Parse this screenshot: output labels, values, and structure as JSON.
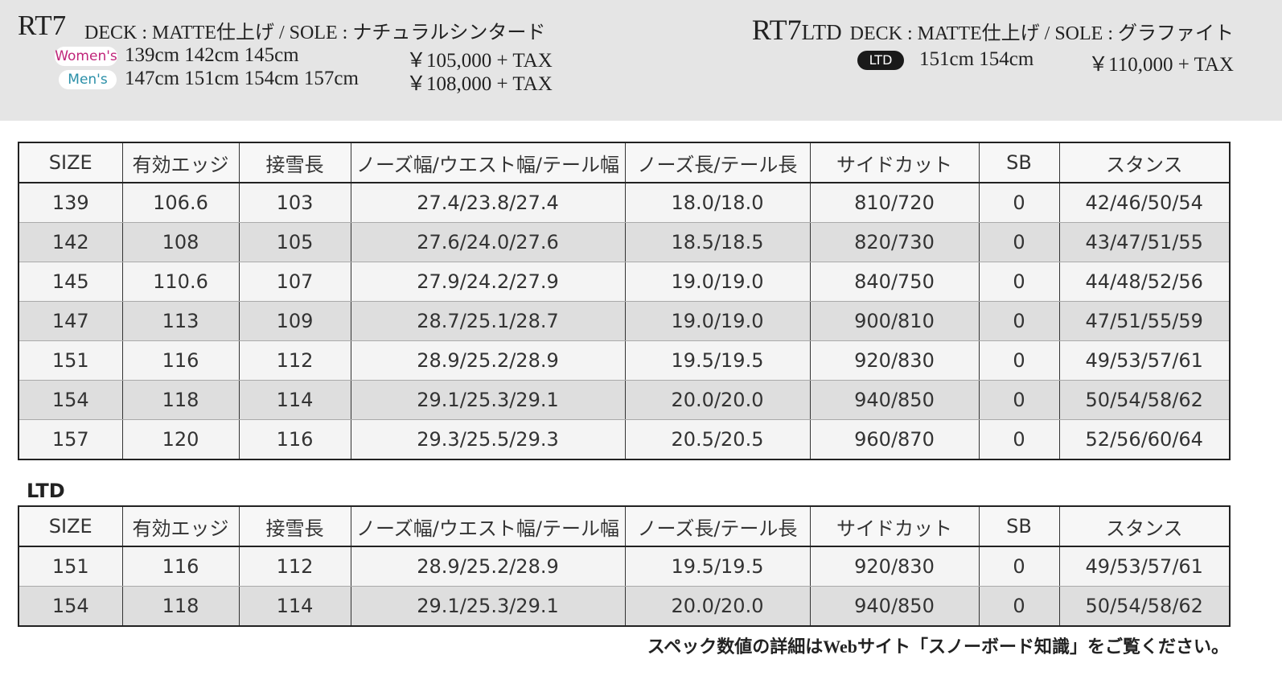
{
  "header": {
    "left": {
      "model": "RT7",
      "spec": "DECK : MATTE仕上げ / SOLE : ナチュラルシンタード",
      "women": {
        "badge": "Women's",
        "sizes": "139cm 142cm 145cm",
        "price": "￥105,000 + TAX"
      },
      "men": {
        "badge": "Men's",
        "sizes": "147cm 151cm 154cm 157cm",
        "price": "￥108,000 + TAX"
      }
    },
    "right": {
      "model": "RT7",
      "model_suffix": "LTD",
      "spec": "DECK : MATTE仕上げ / SOLE : グラファイト",
      "badge": "LTD",
      "sizes": "151cm 154cm",
      "price": "￥110,000 + TAX"
    }
  },
  "table": {
    "columns": [
      "SIZE",
      "有効エッジ",
      "接雪長",
      "ノーズ幅/ウエスト幅/テール幅",
      "ノーズ長/テール長",
      "サイドカット",
      "SB",
      "スタンス"
    ],
    "rows": [
      [
        "139",
        "106.6",
        "103",
        "27.4/23.8/27.4",
        "18.0/18.0",
        "810/720",
        "0",
        "42/46/50/54"
      ],
      [
        "142",
        "108",
        "105",
        "27.6/24.0/27.6",
        "18.5/18.5",
        "820/730",
        "0",
        "43/47/51/55"
      ],
      [
        "145",
        "110.6",
        "107",
        "27.9/24.2/27.9",
        "19.0/19.0",
        "840/750",
        "0",
        "44/48/52/56"
      ],
      [
        "147",
        "113",
        "109",
        "28.7/25.1/28.7",
        "19.0/19.0",
        "900/810",
        "0",
        "47/51/55/59"
      ],
      [
        "151",
        "116",
        "112",
        "28.9/25.2/28.9",
        "19.5/19.5",
        "920/830",
        "0",
        "49/53/57/61"
      ],
      [
        "154",
        "118",
        "114",
        "29.1/25.3/29.1",
        "20.0/20.0",
        "940/850",
        "0",
        "50/54/58/62"
      ],
      [
        "157",
        "120",
        "116",
        "29.3/25.5/29.3",
        "20.5/20.5",
        "960/870",
        "0",
        "52/56/60/64"
      ]
    ]
  },
  "ltd_section": {
    "title": "LTD",
    "table": {
      "columns": [
        "SIZE",
        "有効エッジ",
        "接雪長",
        "ノーズ幅/ウエスト幅/テール幅",
        "ノーズ長/テール長",
        "サイドカット",
        "SB",
        "スタンス"
      ],
      "rows": [
        [
          "151",
          "116",
          "112",
          "28.9/25.2/28.9",
          "19.5/19.5",
          "920/830",
          "0",
          "49/53/57/61"
        ],
        [
          "154",
          "118",
          "114",
          "29.1/25.3/29.1",
          "20.0/20.0",
          "940/850",
          "0",
          "50/54/58/62"
        ]
      ]
    }
  },
  "footer_note": "スペック数値の詳細はWebサイト「スノーボード知識」をご覧ください。"
}
